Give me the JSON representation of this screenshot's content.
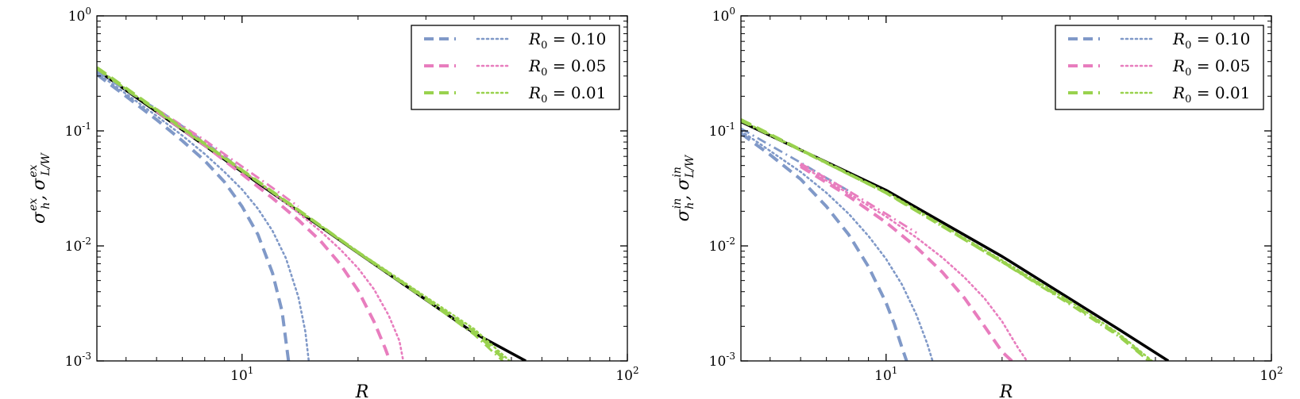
{
  "chart_data": [
    {
      "type": "line",
      "panel": "left",
      "xscale": "log",
      "yscale": "log",
      "xlim": [
        4.2,
        100
      ],
      "ylim": [
        0.001,
        1
      ],
      "xlabel": "R",
      "ylabel": {
        "s1": "σ",
        "s1_sub": "h",
        "s1_sup": "ex",
        "sep": ",",
        "s2": "σ",
        "s2_sub": "L/W",
        "s2_sup": "ex"
      },
      "x_ticks": [
        {
          "base": "10",
          "exp": "1",
          "value": 10
        },
        {
          "base": "10",
          "exp": "2",
          "value": 100
        }
      ],
      "y_ticks": [
        {
          "base": "10",
          "exp": "0",
          "value": 1
        },
        {
          "base": "10",
          "exp": "-1",
          "value": 0.1
        },
        {
          "base": "10",
          "exp": "-2",
          "value": 0.01
        },
        {
          "base": "10",
          "exp": "-3",
          "value": 0.001
        }
      ],
      "legend": {
        "placement": "top-right",
        "entries": [
          {
            "label_pre": "R",
            "label_sub": "0",
            "label_post": " = 0.10",
            "color": "#8099c8"
          },
          {
            "label_pre": "R",
            "label_sub": "0",
            "label_post": " = 0.05",
            "color": "#e87dbe"
          },
          {
            "label_pre": "R",
            "label_sub": "0",
            "label_post": " = 0.01",
            "color": "#99d24e"
          }
        ]
      },
      "series": [
        {
          "name": "reference",
          "style": "solid",
          "color": "#000000",
          "x": [
            4.2,
            10,
            20,
            40,
            54.5
          ],
          "y": [
            0.34,
            0.044,
            0.0087,
            0.00175,
            0.001
          ]
        },
        {
          "name": "R0=0.10 dashed",
          "style": "dashed",
          "color": "#8099c8",
          "x": [
            4.2,
            5,
            6,
            7,
            8,
            9,
            10,
            11,
            12,
            12.7,
            13.2
          ],
          "y": [
            0.31,
            0.2,
            0.125,
            0.082,
            0.055,
            0.036,
            0.022,
            0.0125,
            0.0058,
            0.0027,
            0.001
          ]
        },
        {
          "name": "R0=0.10 dotted",
          "style": "dotted",
          "color": "#8099c8",
          "x": [
            4.2,
            5,
            6,
            7,
            8,
            9,
            10,
            11,
            12,
            13,
            14,
            14.6,
            14.9
          ],
          "y": [
            0.32,
            0.21,
            0.135,
            0.091,
            0.063,
            0.044,
            0.031,
            0.021,
            0.0135,
            0.0078,
            0.0036,
            0.0018,
            0.001
          ]
        },
        {
          "name": "R0=0.10 dashdot",
          "style": "dashdot",
          "color": "#8099c8",
          "x": [
            4.2,
            5,
            6,
            7,
            8,
            9,
            10
          ],
          "y": [
            0.33,
            0.225,
            0.155,
            0.11,
            0.08,
            0.06,
            0.046
          ]
        },
        {
          "name": "R0=0.05 dashed",
          "style": "dashed",
          "color": "#e87dbe",
          "x": [
            6,
            8,
            10,
            12,
            14,
            16,
            18,
            20,
            22,
            23.5,
            24.2
          ],
          "y": [
            0.148,
            0.075,
            0.042,
            0.026,
            0.0168,
            0.011,
            0.0069,
            0.0041,
            0.0022,
            0.0013,
            0.001
          ]
        },
        {
          "name": "R0=0.05 dotted",
          "style": "dotted",
          "color": "#e87dbe",
          "x": [
            6,
            8,
            10,
            12,
            14,
            16,
            18,
            20,
            22,
            24,
            25.6,
            26.2
          ],
          "y": [
            0.152,
            0.079,
            0.0455,
            0.029,
            0.0194,
            0.0134,
            0.0093,
            0.0064,
            0.0042,
            0.0025,
            0.0015,
            0.001
          ]
        },
        {
          "name": "R0=0.05 dashdot",
          "style": "dashdot",
          "color": "#e87dbe",
          "x": [
            6,
            8,
            10,
            12,
            14
          ],
          "y": [
            0.155,
            0.083,
            0.049,
            0.032,
            0.022
          ]
        },
        {
          "name": "R0=0.01 dashed",
          "style": "dashed",
          "color": "#99d24e",
          "x": [
            4.2,
            10,
            20,
            30,
            40,
            48.5
          ],
          "y": [
            0.355,
            0.0455,
            0.0088,
            0.0035,
            0.0018,
            0.001
          ]
        },
        {
          "name": "R0=0.01 dotted",
          "style": "dotted",
          "color": "#99d24e",
          "x": [
            4.2,
            10,
            20,
            30,
            40,
            49.5
          ],
          "y": [
            0.35,
            0.0453,
            0.0089,
            0.0036,
            0.0019,
            0.001
          ]
        },
        {
          "name": "R0=0.01 dashdot",
          "style": "dashdot",
          "color": "#99d24e",
          "x": [
            4.2,
            10,
            20,
            30,
            40,
            47.5
          ],
          "y": [
            0.345,
            0.0448,
            0.0087,
            0.0034,
            0.0017,
            0.001
          ]
        }
      ]
    },
    {
      "type": "line",
      "panel": "right",
      "xscale": "log",
      "yscale": "log",
      "xlim": [
        4.2,
        100
      ],
      "ylim": [
        0.001,
        1
      ],
      "xlabel": "R",
      "ylabel": {
        "s1": "σ",
        "s1_sub": "h",
        "s1_sup": "in",
        "sep": ",",
        "s2": "σ",
        "s2_sub": "L/W",
        "s2_sup": "in"
      },
      "x_ticks": [
        {
          "base": "10",
          "exp": "1",
          "value": 10
        },
        {
          "base": "10",
          "exp": "2",
          "value": 100
        }
      ],
      "y_ticks": [
        {
          "base": "10",
          "exp": "0",
          "value": 1
        },
        {
          "base": "10",
          "exp": "-1",
          "value": 0.1
        },
        {
          "base": "10",
          "exp": "-2",
          "value": 0.01
        },
        {
          "base": "10",
          "exp": "-3",
          "value": 0.001
        }
      ],
      "legend": {
        "placement": "top-right",
        "entries": [
          {
            "label_pre": "R",
            "label_sub": "0",
            "label_post": " = 0.10",
            "color": "#8099c8"
          },
          {
            "label_pre": "R",
            "label_sub": "0",
            "label_post": " = 0.05",
            "color": "#e87dbe"
          },
          {
            "label_pre": "R",
            "label_sub": "0",
            "label_post": " = 0.01",
            "color": "#99d24e"
          }
        ]
      },
      "series": [
        {
          "name": "reference",
          "style": "solid",
          "color": "#000000",
          "x": [
            4.2,
            10,
            20,
            40,
            54
          ],
          "y": [
            0.12,
            0.0305,
            0.0081,
            0.0019,
            0.001
          ]
        },
        {
          "name": "R0=0.10 dashed",
          "style": "dashed",
          "color": "#8099c8",
          "x": [
            4.2,
            5,
            6,
            7,
            8,
            9,
            10,
            10.5,
            11,
            11.3
          ],
          "y": [
            0.095,
            0.062,
            0.038,
            0.022,
            0.0125,
            0.0066,
            0.0032,
            0.0021,
            0.0013,
            0.001
          ]
        },
        {
          "name": "R0=0.10 dotted",
          "style": "dotted",
          "color": "#8099c8",
          "x": [
            4.2,
            5,
            6,
            7,
            8,
            9,
            10,
            11,
            12,
            12.8,
            13.2
          ],
          "y": [
            0.1,
            0.067,
            0.044,
            0.029,
            0.019,
            0.0122,
            0.0077,
            0.0046,
            0.0025,
            0.0014,
            0.001
          ]
        },
        {
          "name": "R0=0.10 dashdot",
          "style": "dashdot",
          "color": "#8099c8",
          "x": [
            4.2,
            5,
            6,
            7,
            8
          ],
          "y": [
            0.105,
            0.075,
            0.053,
            0.039,
            0.03
          ]
        },
        {
          "name": "R0=0.05 dashed",
          "style": "dashed",
          "color": "#e87dbe",
          "x": [
            6,
            8,
            10,
            12,
            14,
            16,
            18,
            20,
            21.2
          ],
          "y": [
            0.049,
            0.027,
            0.016,
            0.0097,
            0.0059,
            0.0035,
            0.002,
            0.0012,
            0.001
          ]
        },
        {
          "name": "R0=0.05 dotted",
          "style": "dotted",
          "color": "#e87dbe",
          "x": [
            6,
            8,
            10,
            12,
            14,
            16,
            18,
            20,
            22,
            23.2
          ],
          "y": [
            0.05,
            0.0285,
            0.018,
            0.0118,
            0.0079,
            0.0053,
            0.0035,
            0.0022,
            0.0013,
            0.001
          ]
        },
        {
          "name": "R0=0.05 dashdot",
          "style": "dashdot",
          "color": "#e87dbe",
          "x": [
            6,
            8,
            10,
            12
          ],
          "y": [
            0.052,
            0.03,
            0.019,
            0.013
          ]
        },
        {
          "name": "R0=0.01 dashed",
          "style": "dashed",
          "color": "#99d24e",
          "x": [
            4.2,
            10,
            20,
            30,
            40,
            48.5
          ],
          "y": [
            0.125,
            0.029,
            0.0073,
            0.0032,
            0.0017,
            0.001
          ]
        },
        {
          "name": "R0=0.01 dotted",
          "style": "dotted",
          "color": "#99d24e",
          "x": [
            4.2,
            10,
            20,
            30,
            40,
            49
          ],
          "y": [
            0.124,
            0.0295,
            0.0075,
            0.0033,
            0.00175,
            0.001
          ]
        },
        {
          "name": "R0=0.01 dashdot",
          "style": "dashdot",
          "color": "#99d24e",
          "x": [
            4.2,
            10,
            20,
            30,
            40,
            48
          ],
          "y": [
            0.122,
            0.0288,
            0.0072,
            0.0031,
            0.00165,
            0.001
          ]
        }
      ]
    }
  ]
}
